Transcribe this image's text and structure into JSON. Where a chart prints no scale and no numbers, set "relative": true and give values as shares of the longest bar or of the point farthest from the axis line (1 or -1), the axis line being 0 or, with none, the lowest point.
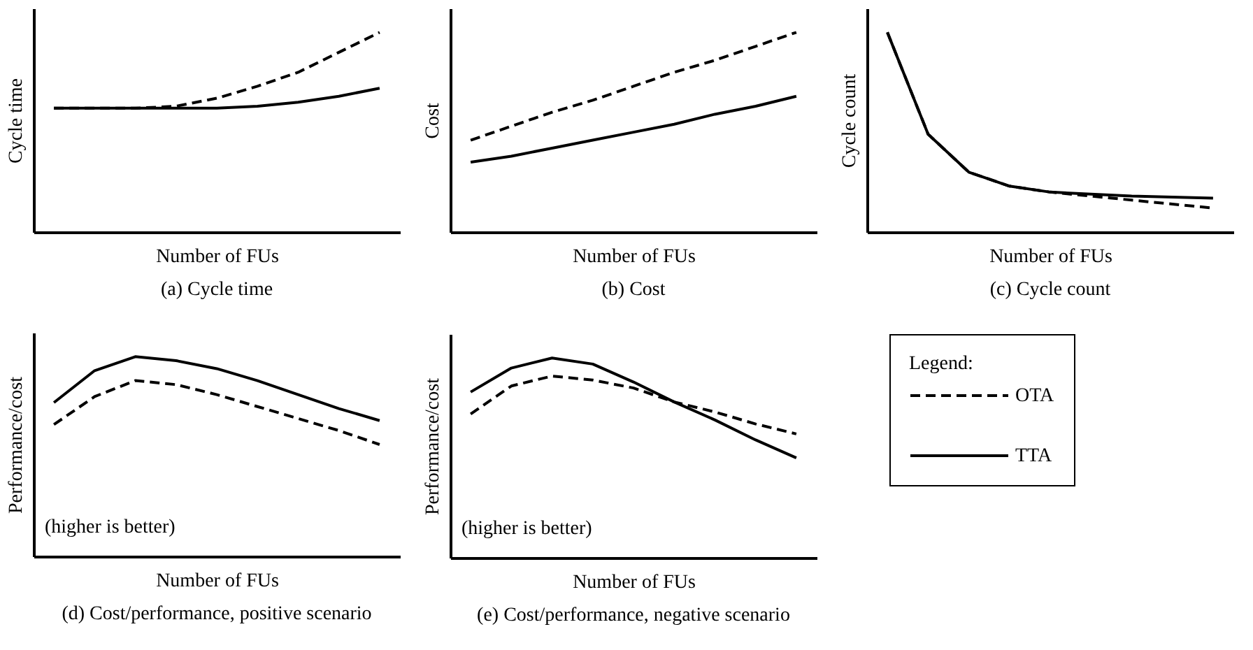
{
  "chart_data": [
    {
      "type": "line",
      "title": "(a) Cycle time",
      "xlabel": "Number of FUs",
      "ylabel": "Cycle time",
      "relative": true,
      "categories": [
        null,
        null,
        null,
        null,
        null,
        null,
        null,
        null,
        null
      ],
      "series": [
        {
          "color": "#000000",
          "line_style": "dashed",
          "values": [
            0.62,
            0.62,
            0.62,
            0.63,
            0.67,
            0.73,
            0.8,
            0.9,
            1.0
          ]
        },
        {
          "color": "#000000",
          "line_style": "solid",
          "values": [
            0.62,
            0.62,
            0.62,
            0.62,
            0.62,
            0.63,
            0.65,
            0.68,
            0.72
          ]
        }
      ]
    },
    {
      "type": "line",
      "title": "(b) Cost",
      "xlabel": "Number of FUs",
      "ylabel": "Cost",
      "relative": true,
      "categories": [
        null,
        null,
        null,
        null,
        null,
        null,
        null,
        null,
        null
      ],
      "series": [
        {
          "color": "#000000",
          "line_style": "dashed",
          "values": [
            0.46,
            0.53,
            0.6,
            0.66,
            0.73,
            0.8,
            0.86,
            0.93,
            1.0
          ]
        },
        {
          "color": "#000000",
          "line_style": "solid",
          "values": [
            0.35,
            0.38,
            0.42,
            0.46,
            0.5,
            0.54,
            0.59,
            0.63,
            0.68
          ]
        }
      ]
    },
    {
      "type": "line",
      "title": "(c) Cycle count",
      "xlabel": "Number of FUs",
      "ylabel": "Cycle count",
      "relative": true,
      "categories": [
        null,
        null,
        null,
        null,
        null,
        null,
        null,
        null,
        null
      ],
      "series": [
        {
          "color": "#000000",
          "line_style": "dashed",
          "values": [
            1.0,
            0.49,
            0.3,
            0.23,
            0.2,
            0.18,
            0.16,
            0.14,
            0.12
          ]
        },
        {
          "color": "#000000",
          "line_style": "solid",
          "values": [
            1.0,
            0.49,
            0.3,
            0.23,
            0.2,
            0.19,
            0.18,
            0.175,
            0.17
          ]
        }
      ]
    },
    {
      "type": "line",
      "title": "(d) Cost/performance, positive scenario",
      "xlabel": "Number of FUs",
      "ylabel": "Performance/cost",
      "relative": true,
      "annotations": [
        "(higher is better)"
      ],
      "categories": [
        null,
        null,
        null,
        null,
        null,
        null,
        null,
        null,
        null
      ],
      "series": [
        {
          "color": "#000000",
          "line_style": "dashed",
          "values": [
            0.66,
            0.8,
            0.88,
            0.86,
            0.81,
            0.75,
            0.69,
            0.63,
            0.56
          ]
        },
        {
          "color": "#000000",
          "line_style": "solid",
          "values": [
            0.77,
            0.93,
            1.0,
            0.98,
            0.94,
            0.88,
            0.81,
            0.74,
            0.68
          ]
        }
      ]
    },
    {
      "type": "line",
      "title": "(e) Cost/performance, negative scenario",
      "xlabel": "Number of FUs",
      "ylabel": "Performance/cost",
      "relative": true,
      "annotations": [
        "(higher is better)"
      ],
      "legend": "right",
      "legend_title": "Legend:",
      "categories": [
        null,
        null,
        null,
        null,
        null,
        null,
        null,
        null,
        null
      ],
      "series": [
        {
          "name": "OTA",
          "color": "#000000",
          "line_style": "dashed",
          "values": [
            0.72,
            0.86,
            0.91,
            0.89,
            0.85,
            0.78,
            0.73,
            0.67,
            0.62
          ]
        },
        {
          "name": "TTA",
          "color": "#000000",
          "line_style": "solid",
          "values": [
            0.83,
            0.95,
            1.0,
            0.97,
            0.88,
            0.78,
            0.69,
            0.59,
            0.5
          ]
        }
      ]
    }
  ]
}
